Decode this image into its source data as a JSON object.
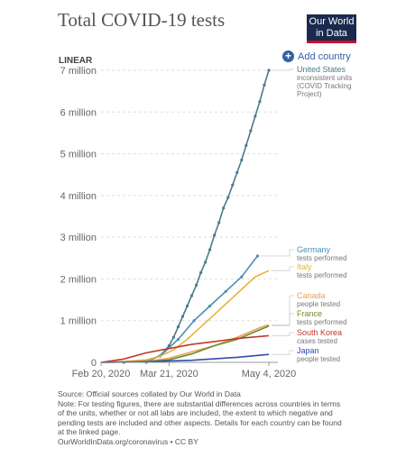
{
  "header": {
    "title": "Total COVID-19 tests",
    "logo_line1": "Our World",
    "logo_line2": "in Data"
  },
  "controls": {
    "scale_label": "LINEAR",
    "add_country_label": "Add country"
  },
  "footer": {
    "source": "Source: Official sources collated by Our World in Data",
    "note": "Note: For testing figures, there are substantial differences across countries in terms of the units, whether or not all labs are included, the extent to which negative and pending tests are included and other aspects. Details for each country can be found at the linked page.",
    "url": "OurWorldInData.org/coronavirus • CC BY"
  },
  "chart_data": {
    "type": "line",
    "title": "Total COVID-19 tests",
    "xlabel": "",
    "ylabel": "",
    "x_ticks": [
      {
        "label": "Feb 20, 2020",
        "day": 0
      },
      {
        "label": "Mar 21, 2020",
        "day": 30
      },
      {
        "label": "May 4, 2020",
        "day": 74
      }
    ],
    "xlim": [
      0,
      74
    ],
    "y_ticks": [
      {
        "label": "0",
        "value": 0
      },
      {
        "label": "1 million",
        "value": 1000000
      },
      {
        "label": "2 million",
        "value": 2000000
      },
      {
        "label": "3 million",
        "value": 3000000
      },
      {
        "label": "4 million",
        "value": 4000000
      },
      {
        "label": "5 million",
        "value": 5000000
      },
      {
        "label": "6 million",
        "value": 6000000
      },
      {
        "label": "7 million",
        "value": 7000000
      }
    ],
    "ylim": [
      0,
      7000000
    ],
    "grid": true,
    "series": [
      {
        "name": "United States",
        "subtitle": [
          "inconsistent units",
          "(COVID Tracking",
          "Project)"
        ],
        "color": "#4c7a8c",
        "markers": true,
        "x": [
          10,
          20,
          26,
          30,
          32,
          34,
          36,
          38,
          40,
          42,
          44,
          46,
          48,
          50,
          52,
          54,
          56,
          58,
          60,
          62,
          64,
          66,
          68,
          70,
          72,
          74
        ],
        "y": [
          0,
          30000,
          150000,
          400000,
          600000,
          850000,
          1100000,
          1350000,
          1600000,
          1850000,
          2150000,
          2400000,
          2700000,
          3050000,
          3350000,
          3700000,
          3950000,
          4250000,
          4550000,
          4850000,
          5200000,
          5550000,
          5900000,
          6250000,
          6650000,
          7000000
        ]
      },
      {
        "name": "Germany",
        "subtitle": [
          "tests performed"
        ],
        "color": "#4b8fb3",
        "markers": true,
        "x": [
          20,
          27,
          34,
          41,
          48,
          55,
          62,
          69
        ],
        "y": [
          0,
          200000,
          550000,
          1000000,
          1350000,
          1700000,
          2050000,
          2550000
        ]
      },
      {
        "name": "Italy",
        "subtitle": [
          "tests performed"
        ],
        "color": "#e8b33b",
        "markers": false,
        "x": [
          0,
          10,
          20,
          26,
          32,
          38,
          44,
          50,
          56,
          62,
          68,
          72,
          74
        ],
        "y": [
          0,
          20000,
          60000,
          150000,
          300000,
          550000,
          850000,
          1150000,
          1450000,
          1750000,
          2050000,
          2150000,
          2200000
        ]
      },
      {
        "name": "Canada",
        "subtitle": [
          "people tested"
        ],
        "color": "#e9a15d",
        "markers": false,
        "x": [
          0,
          20,
          30,
          40,
          50,
          60,
          70,
          74
        ],
        "y": [
          0,
          20000,
          100000,
          250000,
          400000,
          600000,
          830000,
          900000
        ]
      },
      {
        "name": "France",
        "subtitle": [
          "tests performed"
        ],
        "color": "#6f8b2f",
        "markers": false,
        "x": [
          0,
          20,
          30,
          40,
          50,
          60,
          70,
          74
        ],
        "y": [
          0,
          10000,
          60000,
          200000,
          400000,
          550000,
          780000,
          870000
        ]
      },
      {
        "name": "South Korea",
        "subtitle": [
          "cases tested"
        ],
        "color": "#c0392b",
        "markers": false,
        "x": [
          0,
          10,
          20,
          30,
          40,
          50,
          60,
          70,
          74
        ],
        "y": [
          0,
          80000,
          230000,
          330000,
          430000,
          500000,
          570000,
          620000,
          640000
        ]
      },
      {
        "name": "Japan",
        "subtitle": [
          "people tested"
        ],
        "color": "#2b4fa8",
        "markers": false,
        "x": [
          0,
          20,
          40,
          60,
          74
        ],
        "y": [
          0,
          15000,
          50000,
          120000,
          190000
        ]
      }
    ]
  }
}
